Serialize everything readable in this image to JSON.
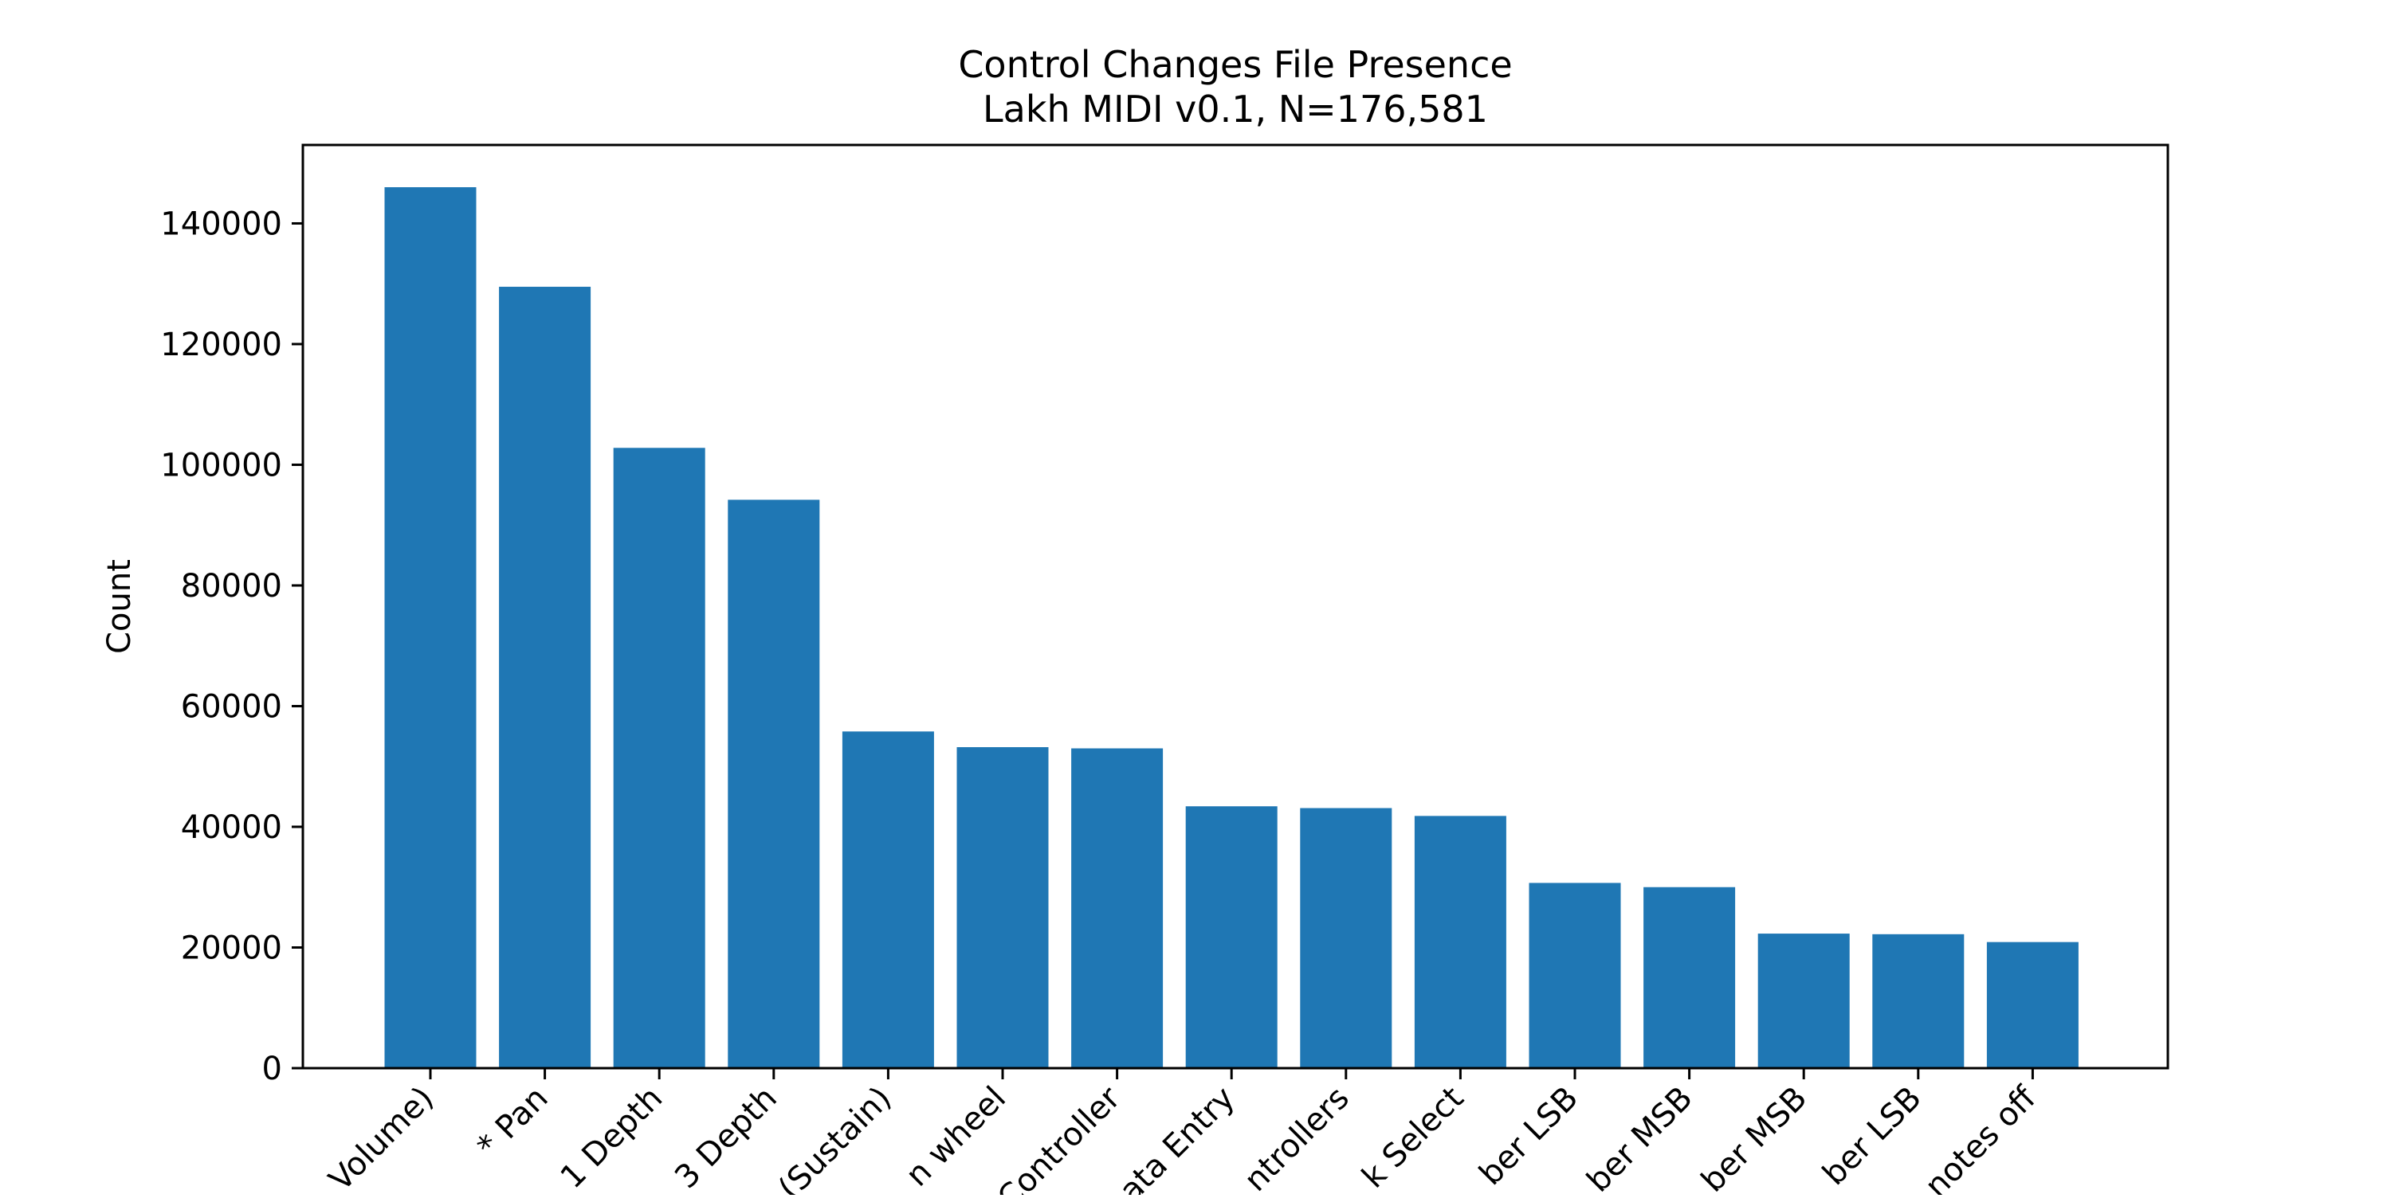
{
  "chart_data": {
    "type": "bar",
    "title": "Control Changes File Presence",
    "subtitle": "Lakh MIDI v0.1, N=176,581",
    "xlabel": "",
    "ylabel": "Count",
    "ylim": [
      0,
      153000
    ],
    "yticks": [
      0,
      20000,
      40000,
      60000,
      80000,
      100000,
      120000,
      140000
    ],
    "grid": false,
    "bar_color": "#1f77b4",
    "categories": [
      "Volume)",
      "* Pan",
      "1 Depth",
      "3 Depth",
      "(Sustain)",
      "n wheel",
      "Controller",
      "ata Entry",
      "ntrollers",
      "k Select",
      "ber LSB",
      "ber MSB",
      "ber MSB",
      "ber LSB",
      "notes off"
    ],
    "values": [
      146000,
      129500,
      102800,
      94200,
      55800,
      53200,
      53000,
      43400,
      43100,
      41800,
      30700,
      30000,
      22300,
      22200,
      20900
    ]
  }
}
